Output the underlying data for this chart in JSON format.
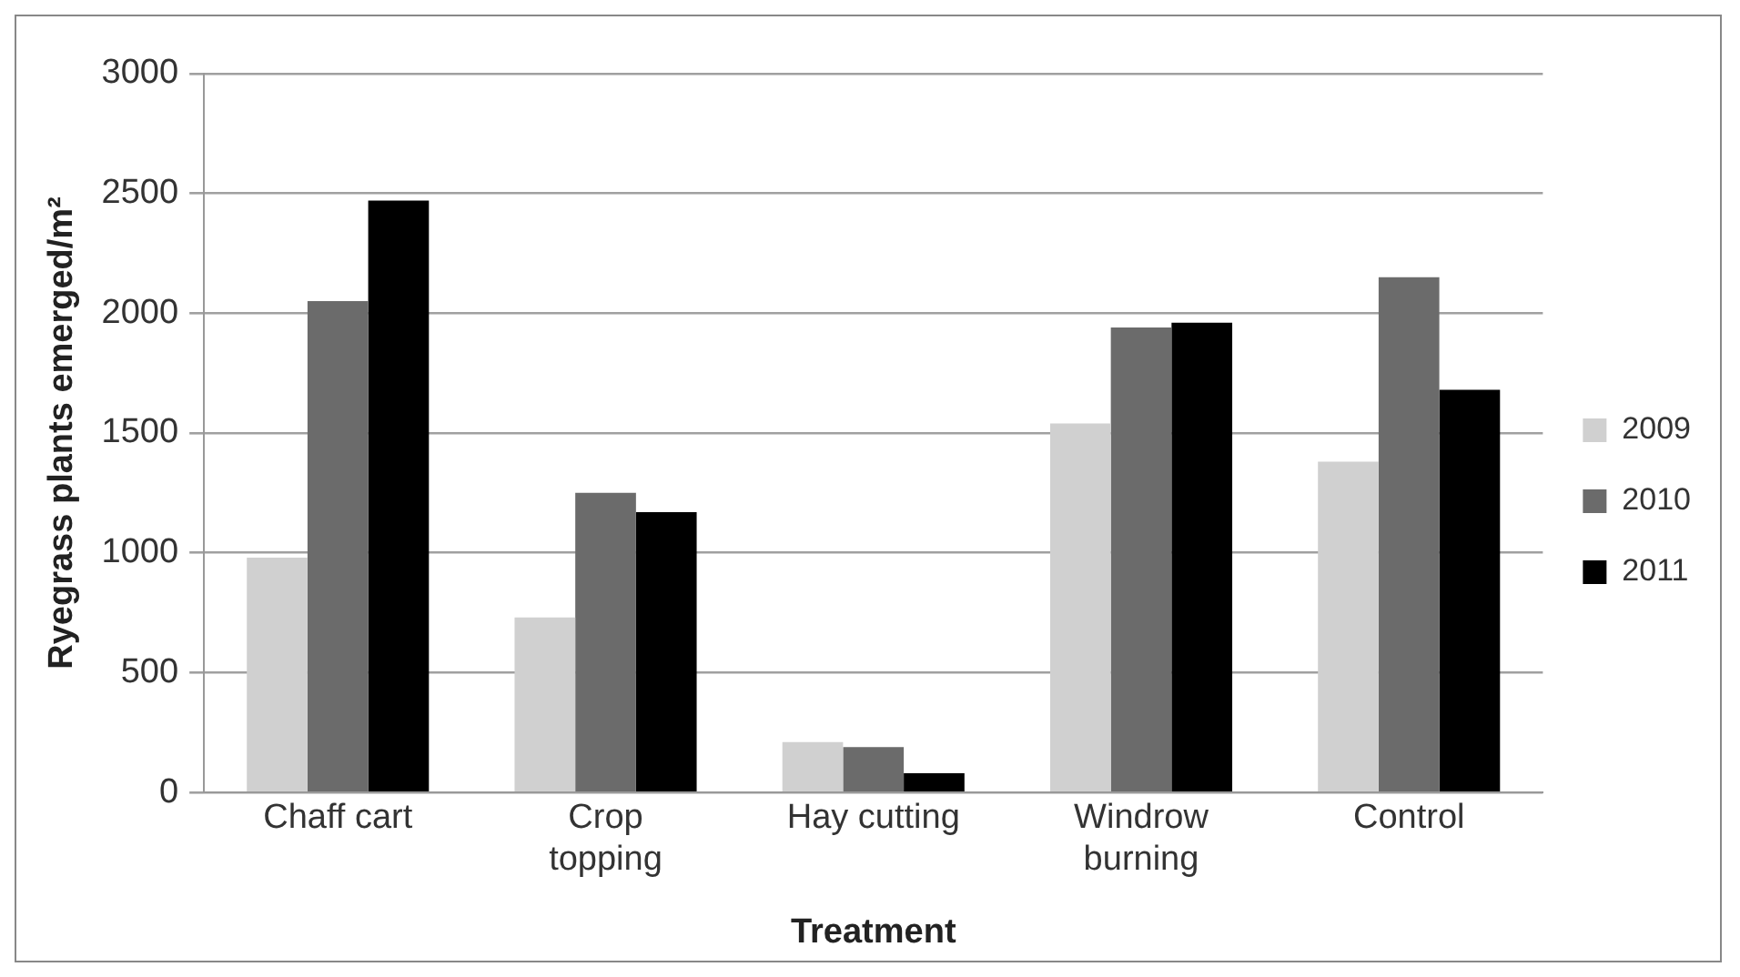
{
  "chart_data": {
    "type": "bar",
    "xlabel": "Treatment",
    "ylabel": "Ryegrass plants emerged/m²",
    "categories": [
      "Chaff cart",
      "Crop topping",
      "Hay cutting",
      "Windrow burning",
      "Control"
    ],
    "series": [
      {
        "name": "2009",
        "color": "#d0d0d0",
        "values": [
          980,
          730,
          210,
          1540,
          1380
        ]
      },
      {
        "name": "2010",
        "color": "#6b6b6b",
        "values": [
          2050,
          1250,
          190,
          1940,
          2150
        ]
      },
      {
        "name": "2011",
        "color": "#000000",
        "values": [
          2470,
          1170,
          80,
          1960,
          1680
        ]
      }
    ],
    "ylim": [
      0,
      3000
    ],
    "yticks": [
      0,
      500,
      1000,
      1500,
      2000,
      2500,
      3000
    ],
    "grid": "y",
    "legend": "right"
  }
}
